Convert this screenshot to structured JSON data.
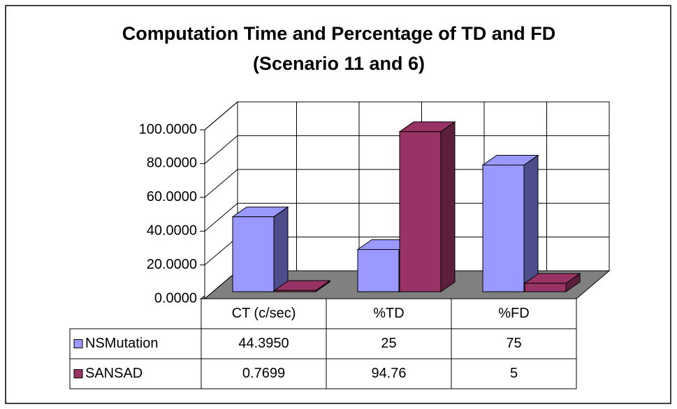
{
  "chart_data": {
    "type": "bar3d",
    "title": [
      "Computation Time and Percentage of TD and FD",
      "(Scenario 11 and 6)"
    ],
    "categories": [
      "CT (c/sec)",
      "%TD",
      "%FD"
    ],
    "series": [
      {
        "name": "NSMutation",
        "color": "#9999ff",
        "side": "#4d4d8c",
        "values": [
          44.395,
          25,
          75
        ],
        "value_labels": [
          "44.3950",
          "25",
          "75"
        ]
      },
      {
        "name": "SANSAD",
        "color": "#993366",
        "side": "#5c1f3d",
        "values": [
          0.7699,
          94.76,
          5
        ],
        "value_labels": [
          "0.7699",
          "94.76",
          "5"
        ]
      }
    ],
    "ylim": [
      0,
      100
    ],
    "yticks": [
      {
        "value": 0,
        "label": "0.0000"
      },
      {
        "value": 20,
        "label": "20.0000"
      },
      {
        "value": 40,
        "label": "40.0000"
      },
      {
        "value": 60,
        "label": "60.0000"
      },
      {
        "value": 80,
        "label": "80.0000"
      },
      {
        "value": 100,
        "label": "100.0000"
      }
    ],
    "grid": true,
    "data_table": true
  }
}
